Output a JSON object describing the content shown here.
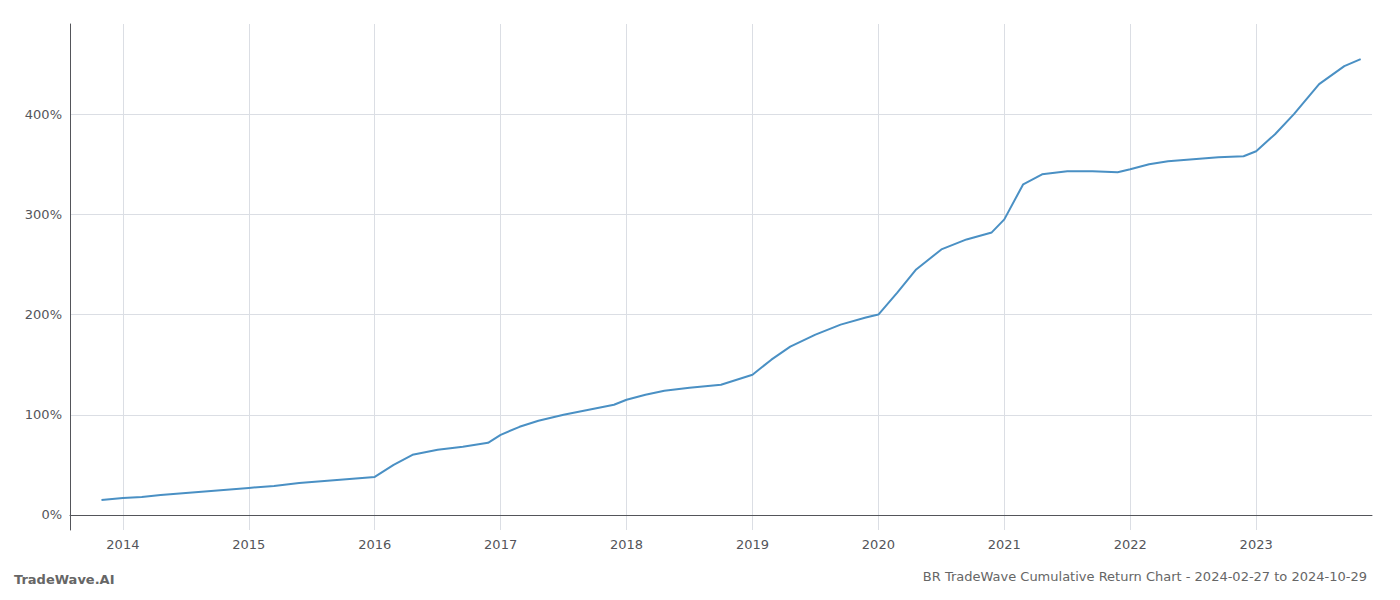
{
  "chart_data": {
    "type": "line",
    "title": "BR TradeWave Cumulative Return Chart - 2024-02-27 to 2024-10-29",
    "annotations": [
      "TradeWave.AI"
    ],
    "color": "#4a90c4",
    "grid": true,
    "xlim": [
      2013.58,
      2023.92
    ],
    "xticks": [
      2014,
      2015,
      2016,
      2017,
      2018,
      2019,
      2020,
      2021,
      2022,
      2023
    ],
    "ylim": [
      -15,
      490
    ],
    "yticks": [
      {
        "value": 0,
        "label": "0%"
      },
      {
        "value": 100,
        "label": "100%"
      },
      {
        "value": 200,
        "label": "200%"
      },
      {
        "value": 300,
        "label": "300%"
      },
      {
        "value": 400,
        "label": "400%"
      }
    ],
    "x": [
      2013.83,
      2014.0,
      2014.15,
      2014.3,
      2014.5,
      2014.7,
      2014.9,
      2015.0,
      2015.2,
      2015.4,
      2015.6,
      2015.8,
      2016.0,
      2016.15,
      2016.3,
      2016.5,
      2016.7,
      2016.9,
      2017.0,
      2017.15,
      2017.3,
      2017.5,
      2017.7,
      2017.9,
      2018.0,
      2018.15,
      2018.3,
      2018.5,
      2018.75,
      2019.0,
      2019.15,
      2019.3,
      2019.5,
      2019.7,
      2019.9,
      2020.0,
      2020.15,
      2020.3,
      2020.5,
      2020.7,
      2020.9,
      2021.0,
      2021.15,
      2021.3,
      2021.5,
      2021.7,
      2021.9,
      2022.0,
      2022.15,
      2022.3,
      2022.5,
      2022.7,
      2022.9,
      2023.0,
      2023.15,
      2023.3,
      2023.5,
      2023.7,
      2023.83
    ],
    "values": [
      15,
      17,
      18,
      20,
      22,
      24,
      26,
      27,
      29,
      32,
      34,
      36,
      38,
      50,
      60,
      65,
      68,
      72,
      80,
      88,
      94,
      100,
      105,
      110,
      115,
      120,
      124,
      127,
      130,
      140,
      155,
      168,
      180,
      190,
      197,
      200,
      222,
      245,
      265,
      275,
      282,
      295,
      330,
      340,
      343,
      343,
      342,
      345,
      350,
      353,
      355,
      357,
      358,
      363,
      380,
      400,
      430,
      448,
      455
    ]
  }
}
